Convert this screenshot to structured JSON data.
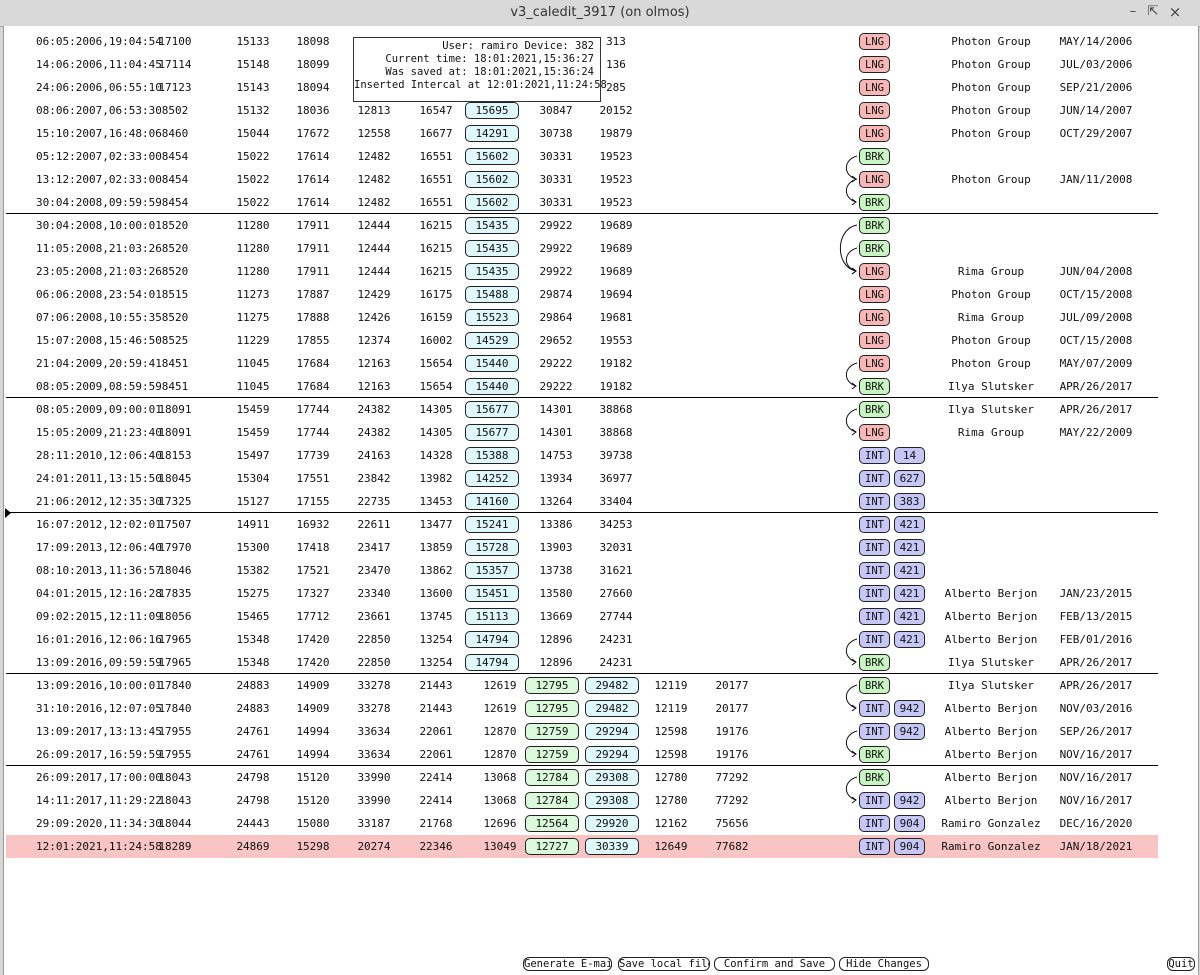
{
  "window": {
    "title": "v3_caledit_3917 (on olmos)"
  },
  "tooltip": {
    "user_line": "User: ramiro Device: 382",
    "current_line": "Current time: 18:01:2021,15:36:27",
    "saved_line": "Was saved at: 18:01:2021,15:36:24",
    "inserted_line": "Inserted Intercal at 12:01:2021,11:24:58"
  },
  "rows": [
    {
      "date": "06:05:2006,19:04:54",
      "n1": "17100",
      "n2": "15133",
      "n3": "18098",
      "n4": "",
      "n5": "",
      "v1": "",
      "v2": "",
      "v3": "313",
      "type": "LNG",
      "num": "",
      "who": "Photon Group",
      "when": "MAY/14/2006"
    },
    {
      "date": "14:06:2006,11:04:45",
      "n1": "17114",
      "n2": "15148",
      "n3": "18099",
      "n4": "",
      "n5": "",
      "v1": "",
      "v2": "",
      "v3": "136",
      "type": "LNG",
      "num": "",
      "who": "Photon Group",
      "when": "JUL/03/2006"
    },
    {
      "date": "24:06:2006,06:55:10",
      "n1": "17123",
      "n2": "15143",
      "n3": "18094",
      "n4": "",
      "n5": "",
      "v1": "",
      "v2": "",
      "v3": "285",
      "type": "LNG",
      "num": "",
      "who": "Photon Group",
      "when": "SEP/21/2006"
    },
    {
      "date": "08:06:2007,06:53:30",
      "n1": "8502",
      "n2": "15132",
      "n3": "18036",
      "n4": "12813",
      "n5": "16547",
      "v1": "15695",
      "v2": "30847",
      "v3": "20152",
      "type": "LNG",
      "num": "",
      "who": "Photon Group",
      "when": "JUN/14/2007"
    },
    {
      "date": "15:10:2007,16:48:06",
      "n1": "8460",
      "n2": "15044",
      "n3": "17672",
      "n4": "12558",
      "n5": "16677",
      "v1": "14291",
      "v2": "30738",
      "v3": "19879",
      "type": "LNG",
      "num": "",
      "who": "Photon Group",
      "when": "OCT/29/2007"
    },
    {
      "date": "05:12:2007,02:33:00",
      "n1": "8454",
      "n2": "15022",
      "n3": "17614",
      "n4": "12482",
      "n5": "16551",
      "v1": "15602",
      "v2": "30331",
      "v3": "19523",
      "type": "BRK",
      "num": "",
      "who": "",
      "when": ""
    },
    {
      "date": "13:12:2007,02:33:00",
      "n1": "8454",
      "n2": "15022",
      "n3": "17614",
      "n4": "12482",
      "n5": "16551",
      "v1": "15602",
      "v2": "30331",
      "v3": "19523",
      "type": "LNG",
      "num": "",
      "who": "Photon Group",
      "when": "JAN/11/2008"
    },
    {
      "date": "30:04:2008,09:59:59",
      "n1": "8454",
      "n2": "15022",
      "n3": "17614",
      "n4": "12482",
      "n5": "16551",
      "v1": "15602",
      "v2": "30331",
      "v3": "19523",
      "type": "BRK",
      "num": "",
      "who": "",
      "when": ""
    },
    {
      "date": "30:04:2008,10:00:01",
      "n1": "8520",
      "n2": "11280",
      "n3": "17911",
      "n4": "12444",
      "n5": "16215",
      "v1": "15435",
      "v2": "29922",
      "v3": "19689",
      "type": "BRK",
      "num": "",
      "who": "",
      "when": ""
    },
    {
      "date": "11:05:2008,21:03:26",
      "n1": "8520",
      "n2": "11280",
      "n3": "17911",
      "n4": "12444",
      "n5": "16215",
      "v1": "15435",
      "v2": "29922",
      "v3": "19689",
      "type": "BRK",
      "num": "",
      "who": "",
      "when": ""
    },
    {
      "date": "23:05:2008,21:03:26",
      "n1": "8520",
      "n2": "11280",
      "n3": "17911",
      "n4": "12444",
      "n5": "16215",
      "v1": "15435",
      "v2": "29922",
      "v3": "19689",
      "type": "LNG",
      "num": "",
      "who": "Rima Group",
      "when": "JUN/04/2008"
    },
    {
      "date": "06:06:2008,23:54:01",
      "n1": "8515",
      "n2": "11273",
      "n3": "17887",
      "n4": "12429",
      "n5": "16175",
      "v1": "15488",
      "v2": "29874",
      "v3": "19694",
      "type": "LNG",
      "num": "",
      "who": "Photon Group",
      "when": "OCT/15/2008"
    },
    {
      "date": "07:06:2008,10:55:35",
      "n1": "8520",
      "n2": "11275",
      "n3": "17888",
      "n4": "12426",
      "n5": "16159",
      "v1": "15523",
      "v2": "29864",
      "v3": "19681",
      "type": "LNG",
      "num": "",
      "who": "Rima Group",
      "when": "JUL/09/2008"
    },
    {
      "date": "15:07:2008,15:46:50",
      "n1": "8525",
      "n2": "11229",
      "n3": "17855",
      "n4": "12374",
      "n5": "16002",
      "v1": "14529",
      "v2": "29652",
      "v3": "19553",
      "type": "LNG",
      "num": "",
      "who": "Photon Group",
      "when": "OCT/15/2008"
    },
    {
      "date": "21:04:2009,20:59:41",
      "n1": "8451",
      "n2": "11045",
      "n3": "17684",
      "n4": "12163",
      "n5": "15654",
      "v1": "15440",
      "v2": "29222",
      "v3": "19182",
      "type": "LNG",
      "num": "",
      "who": "Photon Group",
      "when": "MAY/07/2009"
    },
    {
      "date": "08:05:2009,08:59:59",
      "n1": "8451",
      "n2": "11045",
      "n3": "17684",
      "n4": "12163",
      "n5": "15654",
      "v1": "15440",
      "v2": "29222",
      "v3": "19182",
      "type": "BRK",
      "num": "",
      "who": "Ilya Slutsker",
      "when": "APR/26/2017"
    },
    {
      "date": "08:05:2009,09:00:01",
      "n1": "18091",
      "n2": "15459",
      "n3": "17744",
      "n4": "24382",
      "n5": "14305",
      "v1": "15677",
      "v2": "14301",
      "v3": "38868",
      "type": "BRK",
      "num": "",
      "who": "Ilya Slutsker",
      "when": "APR/26/2017"
    },
    {
      "date": "15:05:2009,21:23:40",
      "n1": "18091",
      "n2": "15459",
      "n3": "17744",
      "n4": "24382",
      "n5": "14305",
      "v1": "15677",
      "v2": "14301",
      "v3": "38868",
      "type": "LNG",
      "num": "",
      "who": "Rima Group",
      "when": "MAY/22/2009"
    },
    {
      "date": "28:11:2010,12:06:40",
      "n1": "18153",
      "n2": "15497",
      "n3": "17739",
      "n4": "24163",
      "n5": "14328",
      "v1": "15388",
      "v2": "14753",
      "v3": "39738",
      "type": "INT",
      "num": "14",
      "who": "",
      "when": ""
    },
    {
      "date": "24:01:2011,13:15:50",
      "n1": "18045",
      "n2": "15304",
      "n3": "17551",
      "n4": "23842",
      "n5": "13982",
      "v1": "14252",
      "v2": "13934",
      "v3": "36977",
      "type": "INT",
      "num": "627",
      "who": "",
      "when": ""
    },
    {
      "date": "21:06:2012,12:35:30",
      "n1": "17325",
      "n2": "15127",
      "n3": "17155",
      "n4": "22735",
      "n5": "13453",
      "v1": "14160",
      "v2": "13264",
      "v3": "33404",
      "type": "INT",
      "num": "383",
      "who": "",
      "when": ""
    },
    {
      "date": "16:07:2012,12:02:01",
      "n1": "17507",
      "n2": "14911",
      "n3": "16932",
      "n4": "22611",
      "n5": "13477",
      "v1": "15241",
      "v2": "13386",
      "v3": "34253",
      "type": "INT",
      "num": "421",
      "who": "",
      "when": ""
    },
    {
      "date": "17:09:2013,12:06:40",
      "n1": "17970",
      "n2": "15300",
      "n3": "17418",
      "n4": "23417",
      "n5": "13859",
      "v1": "15728",
      "v2": "13903",
      "v3": "32031",
      "type": "INT",
      "num": "421",
      "who": "",
      "when": ""
    },
    {
      "date": "08:10:2013,11:36:57",
      "n1": "18046",
      "n2": "15382",
      "n3": "17521",
      "n4": "23470",
      "n5": "13862",
      "v1": "15357",
      "v2": "13738",
      "v3": "31621",
      "type": "INT",
      "num": "421",
      "who": "",
      "when": ""
    },
    {
      "date": "04:01:2015,12:16:28",
      "n1": "17835",
      "n2": "15275",
      "n3": "17327",
      "n4": "23340",
      "n5": "13600",
      "v1": "15451",
      "v2": "13580",
      "v3": "27660",
      "type": "INT",
      "num": "421",
      "who": "Alberto Berjon",
      "when": "JAN/23/2015"
    },
    {
      "date": "09:02:2015,12:11:09",
      "n1": "18056",
      "n2": "15465",
      "n3": "17712",
      "n4": "23661",
      "n5": "13745",
      "v1": "15113",
      "v2": "13669",
      "v3": "27744",
      "type": "INT",
      "num": "421",
      "who": "Alberto Berjon",
      "when": "FEB/13/2015"
    },
    {
      "date": "16:01:2016,12:06:16",
      "n1": "17965",
      "n2": "15348",
      "n3": "17420",
      "n4": "22850",
      "n5": "13254",
      "v1": "14794",
      "v2": "12896",
      "v3": "24231",
      "type": "INT",
      "num": "421",
      "who": "Alberto Berjon",
      "when": "FEB/01/2016"
    },
    {
      "date": "13:09:2016,09:59:59",
      "n1": "17965",
      "n2": "15348",
      "n3": "17420",
      "n4": "22850",
      "n5": "13254",
      "v1": "14794",
      "v2": "12896",
      "v3": "24231",
      "type": "BRK",
      "num": "",
      "who": "Ilya Slutsker",
      "when": "APR/26/2017"
    },
    {
      "date": "13:09:2016,10:00:01",
      "n1": "17840",
      "n2": "24883",
      "n3": "14909",
      "n4": "33278",
      "n5": "21443",
      "n6": "12619",
      "g1": "12795",
      "g2": "29482",
      "n7": "12119",
      "n8": "20177",
      "type": "BRK",
      "num": "",
      "who": "Ilya Slutsker",
      "when": "APR/26/2017"
    },
    {
      "date": "31:10:2016,12:07:05",
      "n1": "17840",
      "n2": "24883",
      "n3": "14909",
      "n4": "33278",
      "n5": "21443",
      "n6": "12619",
      "g1": "12795",
      "g2": "29482",
      "n7": "12119",
      "n8": "20177",
      "type": "INT",
      "num": "942",
      "who": "Alberto Berjon",
      "when": "NOV/03/2016"
    },
    {
      "date": "13:09:2017,13:13:45",
      "n1": "17955",
      "n2": "24761",
      "n3": "14994",
      "n4": "33634",
      "n5": "22061",
      "n6": "12870",
      "g1": "12759",
      "g2": "29294",
      "n7": "12598",
      "n8": "19176",
      "type": "INT",
      "num": "942",
      "who": "Alberto Berjon",
      "when": "SEP/26/2017"
    },
    {
      "date": "26:09:2017,16:59:59",
      "n1": "17955",
      "n2": "24761",
      "n3": "14994",
      "n4": "33634",
      "n5": "22061",
      "n6": "12870",
      "g1": "12759",
      "g2": "29294",
      "n7": "12598",
      "n8": "19176",
      "type": "BRK",
      "num": "",
      "who": "Alberto Berjon",
      "when": "NOV/16/2017"
    },
    {
      "date": "26:09:2017,17:00:00",
      "n1": "18043",
      "n2": "24798",
      "n3": "15120",
      "n4": "33990",
      "n5": "22414",
      "n6": "13068",
      "g1": "12784",
      "g2": "29308",
      "n7": "12780",
      "n8": "77292",
      "type": "BRK",
      "num": "",
      "who": "Alberto Berjon",
      "when": "NOV/16/2017"
    },
    {
      "date": "14:11:2017,11:29:22",
      "n1": "18043",
      "n2": "24798",
      "n3": "15120",
      "n4": "33990",
      "n5": "22414",
      "n6": "13068",
      "g1": "12784",
      "g2": "29308",
      "n7": "12780",
      "n8": "77292",
      "type": "INT",
      "num": "942",
      "who": "Alberto Berjon",
      "when": "NOV/16/2017"
    },
    {
      "date": "29:09:2020,11:34:30",
      "n1": "18044",
      "n2": "24443",
      "n3": "15080",
      "n4": "33187",
      "n5": "21768",
      "n6": "12696",
      "g1": "12564",
      "g2": "29920",
      "n7": "12162",
      "n8": "75656",
      "type": "INT",
      "num": "904",
      "who": "Ramiro Gonzalez",
      "when": "DEC/16/2020"
    },
    {
      "date": "12:01:2021,11:24:58",
      "n1": "18289",
      "n2": "24869",
      "n3": "15298",
      "n4": "20274",
      "n5": "22346",
      "n6": "13049",
      "g1": "12727",
      "g2": "30339",
      "n7": "12649",
      "n8": "77682",
      "type": "INT",
      "num": "904",
      "who": "Ramiro Gonzalez",
      "when": "JAN/18/2021",
      "highlight": true
    }
  ],
  "buttons": {
    "email": "Generate E-mail",
    "save_local": "Save local file",
    "confirm": "Confirm and Save",
    "hide": "Hide Changes",
    "quit": "Quit"
  }
}
